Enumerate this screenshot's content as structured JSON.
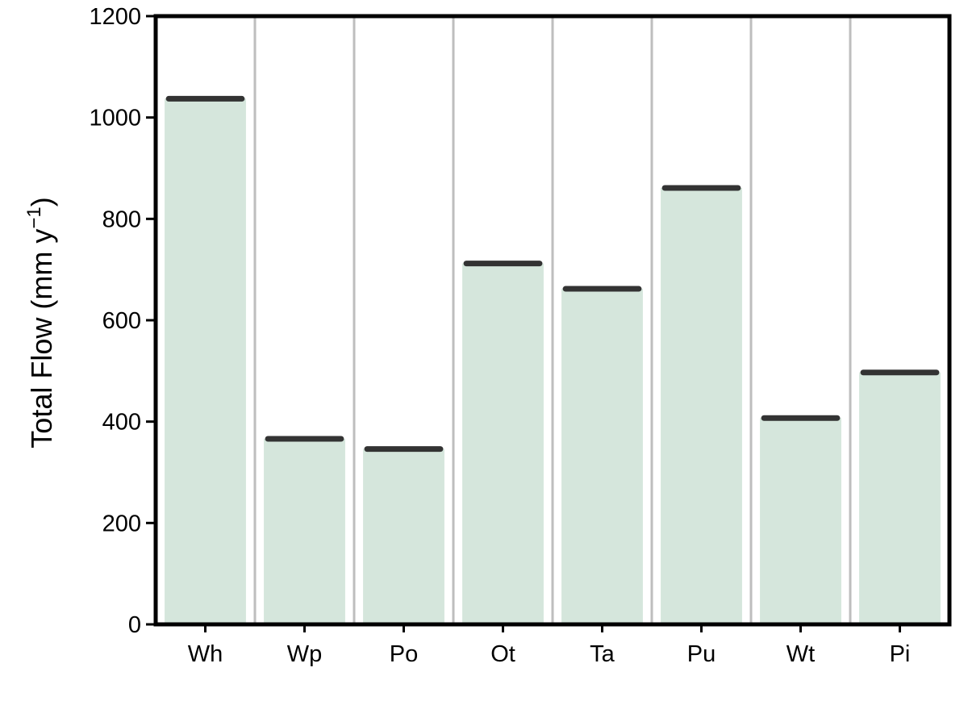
{
  "chart_data": {
    "type": "bar",
    "categories": [
      "Wh",
      "Wp",
      "Po",
      "Ot",
      "Ta",
      "Pu",
      "Wt",
      "Pi"
    ],
    "values": [
      1037,
      366,
      346,
      712,
      662,
      861,
      407,
      497
    ],
    "ylabel_main": "Total Flow",
    "ylabel_unit": "mm y",
    "ylabel_exponent": "−1",
    "ylim": [
      0,
      1200
    ],
    "yticks": [
      "0",
      "200",
      "400",
      "600",
      "800",
      "1000",
      "1200"
    ],
    "grid": "vertical separators",
    "legend": "none",
    "colors": {
      "bar_fill": "#d5e6dc",
      "value_marker": "#333333",
      "separator": "#bebebe",
      "axis": "#000000"
    }
  }
}
